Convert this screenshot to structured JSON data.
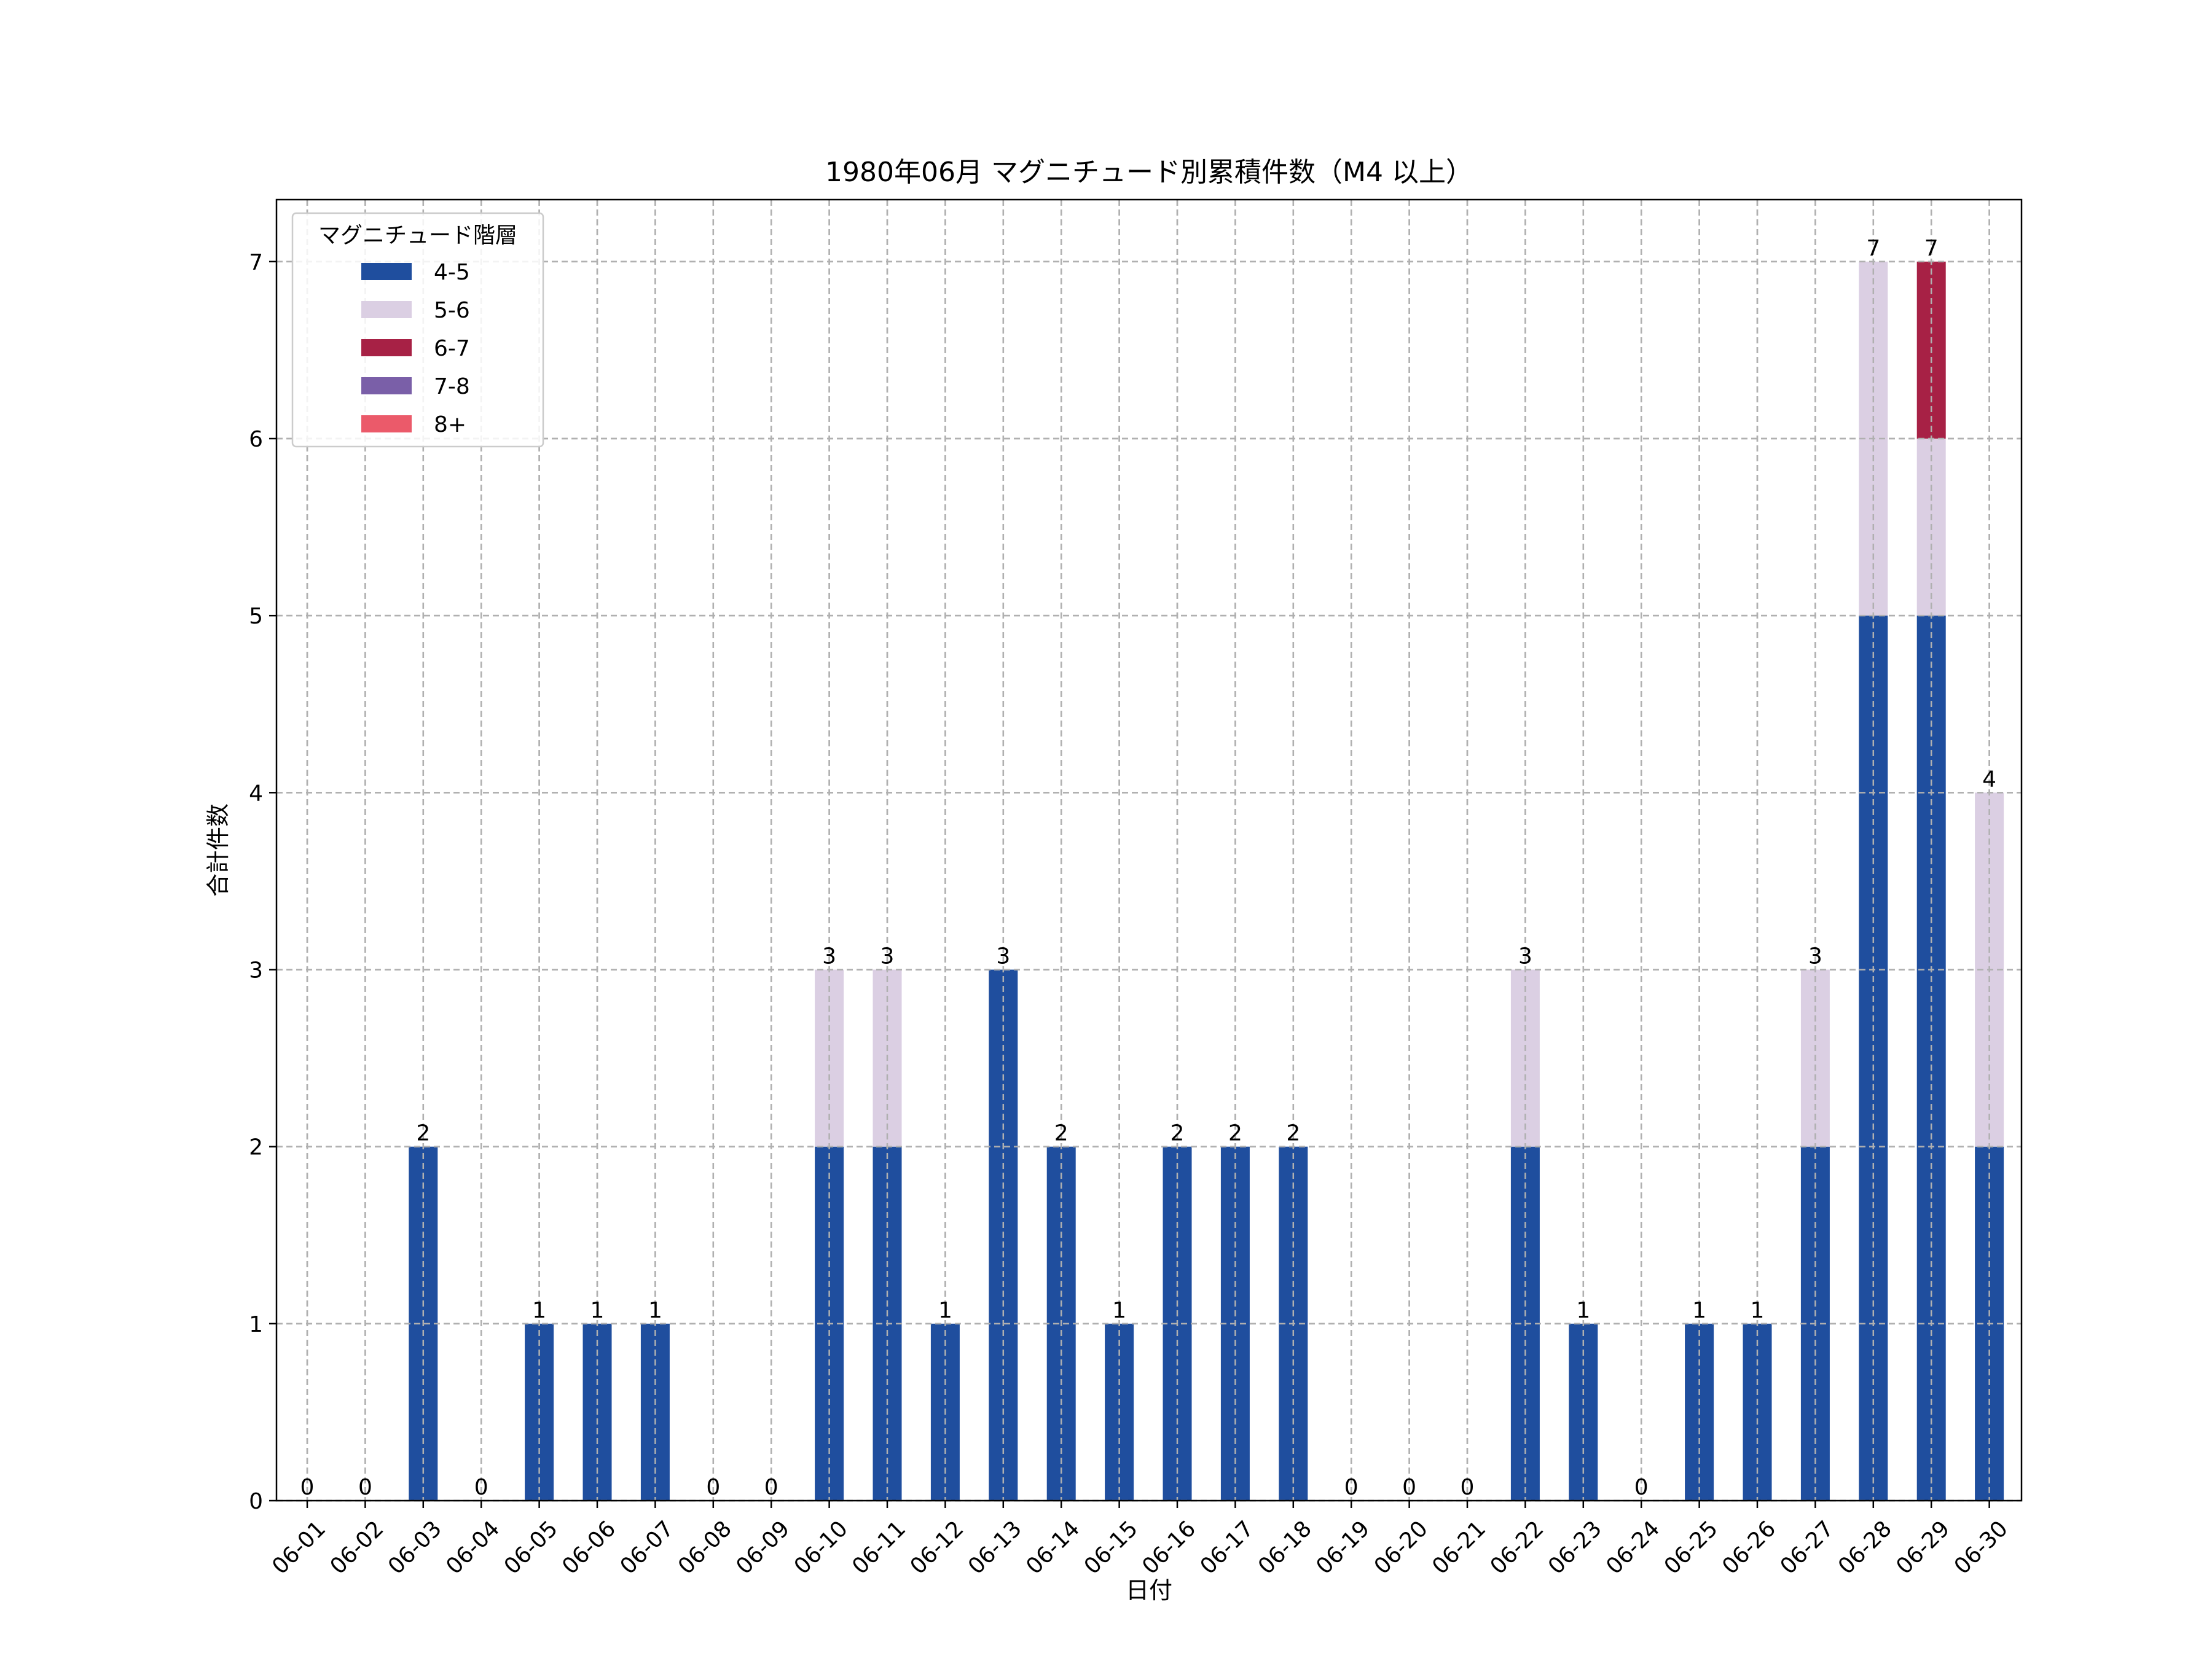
{
  "chart_data": {
    "type": "bar",
    "stacked": true,
    "title": "1980年06月 マグニチュード別累積件数（M4 以上）",
    "xlabel": "日付",
    "ylabel": "合計件数",
    "ylim": [
      0,
      7.35
    ],
    "yticks": [
      0,
      1,
      2,
      3,
      4,
      5,
      6,
      7
    ],
    "grid": true,
    "legend": {
      "title": "マグニチュード階層",
      "placement": "top-left"
    },
    "categories": [
      "06-01",
      "06-02",
      "06-03",
      "06-04",
      "06-05",
      "06-06",
      "06-07",
      "06-08",
      "06-09",
      "06-10",
      "06-11",
      "06-12",
      "06-13",
      "06-14",
      "06-15",
      "06-16",
      "06-17",
      "06-18",
      "06-19",
      "06-20",
      "06-21",
      "06-22",
      "06-23",
      "06-24",
      "06-25",
      "06-26",
      "06-27",
      "06-28",
      "06-29",
      "06-30"
    ],
    "series": [
      {
        "name": "4-5",
        "color": "#1f4e9e",
        "values": [
          0,
          0,
          2,
          0,
          1,
          1,
          1,
          0,
          0,
          2,
          2,
          1,
          3,
          2,
          1,
          2,
          2,
          2,
          0,
          0,
          0,
          2,
          1,
          0,
          1,
          1,
          2,
          5,
          5,
          2
        ]
      },
      {
        "name": "5-6",
        "color": "#dbcfe3",
        "values": [
          0,
          0,
          0,
          0,
          0,
          0,
          0,
          0,
          0,
          1,
          1,
          0,
          0,
          0,
          0,
          0,
          0,
          0,
          0,
          0,
          0,
          1,
          0,
          0,
          0,
          0,
          1,
          2,
          1,
          2
        ]
      },
      {
        "name": "6-7",
        "color": "#a72145",
        "values": [
          0,
          0,
          0,
          0,
          0,
          0,
          0,
          0,
          0,
          0,
          0,
          0,
          0,
          0,
          0,
          0,
          0,
          0,
          0,
          0,
          0,
          0,
          0,
          0,
          0,
          0,
          0,
          0,
          1,
          0
        ]
      },
      {
        "name": "7-8",
        "color": "#7a5fa8",
        "values": [
          0,
          0,
          0,
          0,
          0,
          0,
          0,
          0,
          0,
          0,
          0,
          0,
          0,
          0,
          0,
          0,
          0,
          0,
          0,
          0,
          0,
          0,
          0,
          0,
          0,
          0,
          0,
          0,
          0,
          0
        ]
      },
      {
        "name": "8+",
        "color": "#eb5a6a",
        "values": [
          0,
          0,
          0,
          0,
          0,
          0,
          0,
          0,
          0,
          0,
          0,
          0,
          0,
          0,
          0,
          0,
          0,
          0,
          0,
          0,
          0,
          0,
          0,
          0,
          0,
          0,
          0,
          0,
          0,
          0
        ]
      }
    ],
    "totals": [
      0,
      0,
      2,
      0,
      1,
      1,
      1,
      0,
      0,
      3,
      3,
      1,
      3,
      2,
      1,
      2,
      2,
      2,
      0,
      0,
      0,
      3,
      1,
      0,
      1,
      1,
      3,
      7,
      7,
      4
    ]
  }
}
